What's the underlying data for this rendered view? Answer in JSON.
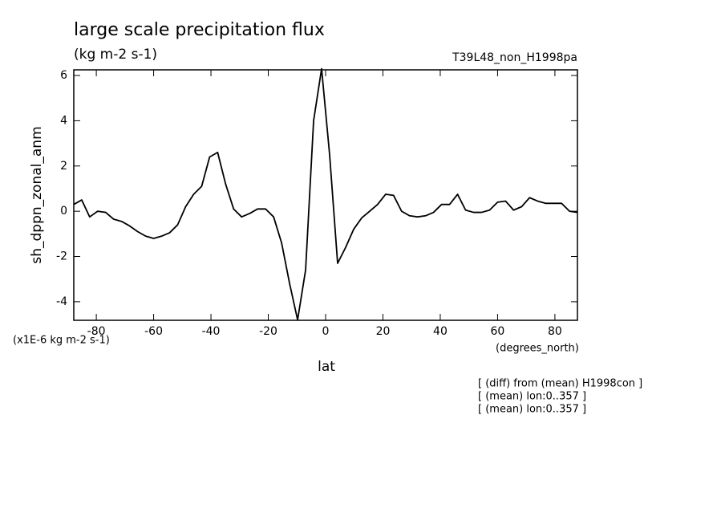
{
  "chart_data": {
    "type": "line",
    "title": "large scale precipitation flux",
    "subtitle": "(kg m-2 s-1)",
    "experiment": "T39L48_non_H1998pa",
    "y_label": "sh_dppn_zonal_anm",
    "y_unit": "(x1E-6 kg m-2 s-1)",
    "x_label": "lat",
    "x_unit": "(degrees_north)",
    "notes": [
      "[ (diff) from (mean) H1998con ]",
      "[ (mean) lon:0..357 ]",
      "[ (mean) lon:0..357 ]"
    ],
    "x": [
      -87.86,
      -85.1,
      -82.31,
      -79.53,
      -76.74,
      -73.95,
      -71.16,
      -68.37,
      -65.58,
      -62.79,
      -60.0,
      -57.21,
      -54.42,
      -51.63,
      -48.84,
      -46.04,
      -43.25,
      -40.46,
      -37.67,
      -34.88,
      -32.09,
      -29.3,
      -26.51,
      -23.72,
      -20.93,
      -18.14,
      -15.35,
      -12.56,
      -9.77,
      -6.98,
      -4.19,
      -1.4,
      1.4,
      4.19,
      6.98,
      9.77,
      12.56,
      15.35,
      18.14,
      20.93,
      23.72,
      26.51,
      29.3,
      32.09,
      34.88,
      37.67,
      40.46,
      43.25,
      46.04,
      48.84,
      51.63,
      54.42,
      57.21,
      60.0,
      62.79,
      65.58,
      68.37,
      71.16,
      73.95,
      76.74,
      79.53,
      82.31,
      85.1,
      87.86
    ],
    "series": [
      {
        "color": "#000000",
        "values": [
          0.3,
          0.5,
          -0.25,
          0.0,
          -0.05,
          -0.35,
          -0.45,
          -0.65,
          -0.9,
          -1.1,
          -1.2,
          -1.1,
          -0.95,
          -0.6,
          0.2,
          0.75,
          1.1,
          2.4,
          2.6,
          1.2,
          0.1,
          -0.25,
          -0.1,
          0.1,
          0.1,
          -0.25,
          -1.4,
          -3.2,
          -4.8,
          -2.6,
          4.0,
          6.3,
          2.5,
          -2.3,
          -1.6,
          -0.8,
          -0.3,
          0.0,
          0.3,
          0.75,
          0.7,
          0.0,
          -0.2,
          -0.25,
          -0.2,
          -0.05,
          0.3,
          0.3,
          0.75,
          0.05,
          -0.05,
          -0.05,
          0.05,
          0.4,
          0.45,
          0.05,
          0.2,
          0.6,
          0.45,
          0.35,
          0.35,
          0.35,
          0.0,
          -0.05
        ]
      }
    ],
    "xlim": [
      -87.86,
      87.86
    ],
    "ylim": [
      -4.82,
      6.25
    ],
    "xticks": [
      -80,
      -60,
      -40,
      -20,
      0,
      20,
      40,
      60,
      80
    ],
    "yticks": [
      -4,
      -2,
      0,
      2,
      4,
      6
    ]
  }
}
